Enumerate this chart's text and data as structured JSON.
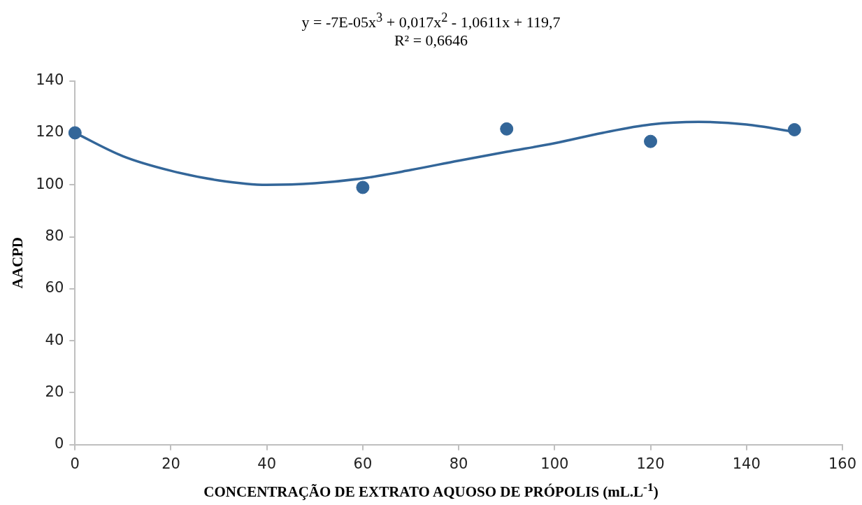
{
  "chart_data": {
    "type": "scatter",
    "annotations": [
      "y = -7E-05x$^{3}$ + 0,017x$^{2}$ - 1,0611x + 119,7",
      "R² = 0,6646"
    ],
    "xlabel": "CONCENTRAÇÃO  DE EXTRATO  AQUOSO DE PRÓPOLIS (mL.L$^{-1}$)",
    "ylabel": "AACPD",
    "xlim": [
      0,
      160
    ],
    "xticks": [
      0,
      20,
      40,
      60,
      80,
      100,
      120,
      140,
      160
    ],
    "ylim": [
      0,
      140
    ],
    "yticks": [
      0,
      20,
      40,
      60,
      80,
      100,
      120,
      140
    ],
    "grid": false,
    "legend": false,
    "marker": "circle",
    "series": [
      {
        "type": "scatter",
        "color": "#336699",
        "x": [
          0,
          60,
          90,
          120,
          150
        ],
        "values": [
          120,
          99,
          121.5,
          116.7,
          121.2
        ]
      },
      {
        "type": "line",
        "color": "#336699",
        "line_style": "solid",
        "marker": "none",
        "x": [
          0,
          10,
          20,
          30,
          40,
          50,
          60,
          70,
          80,
          90,
          100,
          110,
          120,
          130,
          140,
          150
        ],
        "values": [
          120,
          111,
          105.4,
          101.7,
          100,
          100.6,
          102.5,
          105.7,
          109.3,
          112.7,
          116,
          120,
          123.2,
          124.2,
          123.2,
          120.4
        ]
      }
    ]
  }
}
